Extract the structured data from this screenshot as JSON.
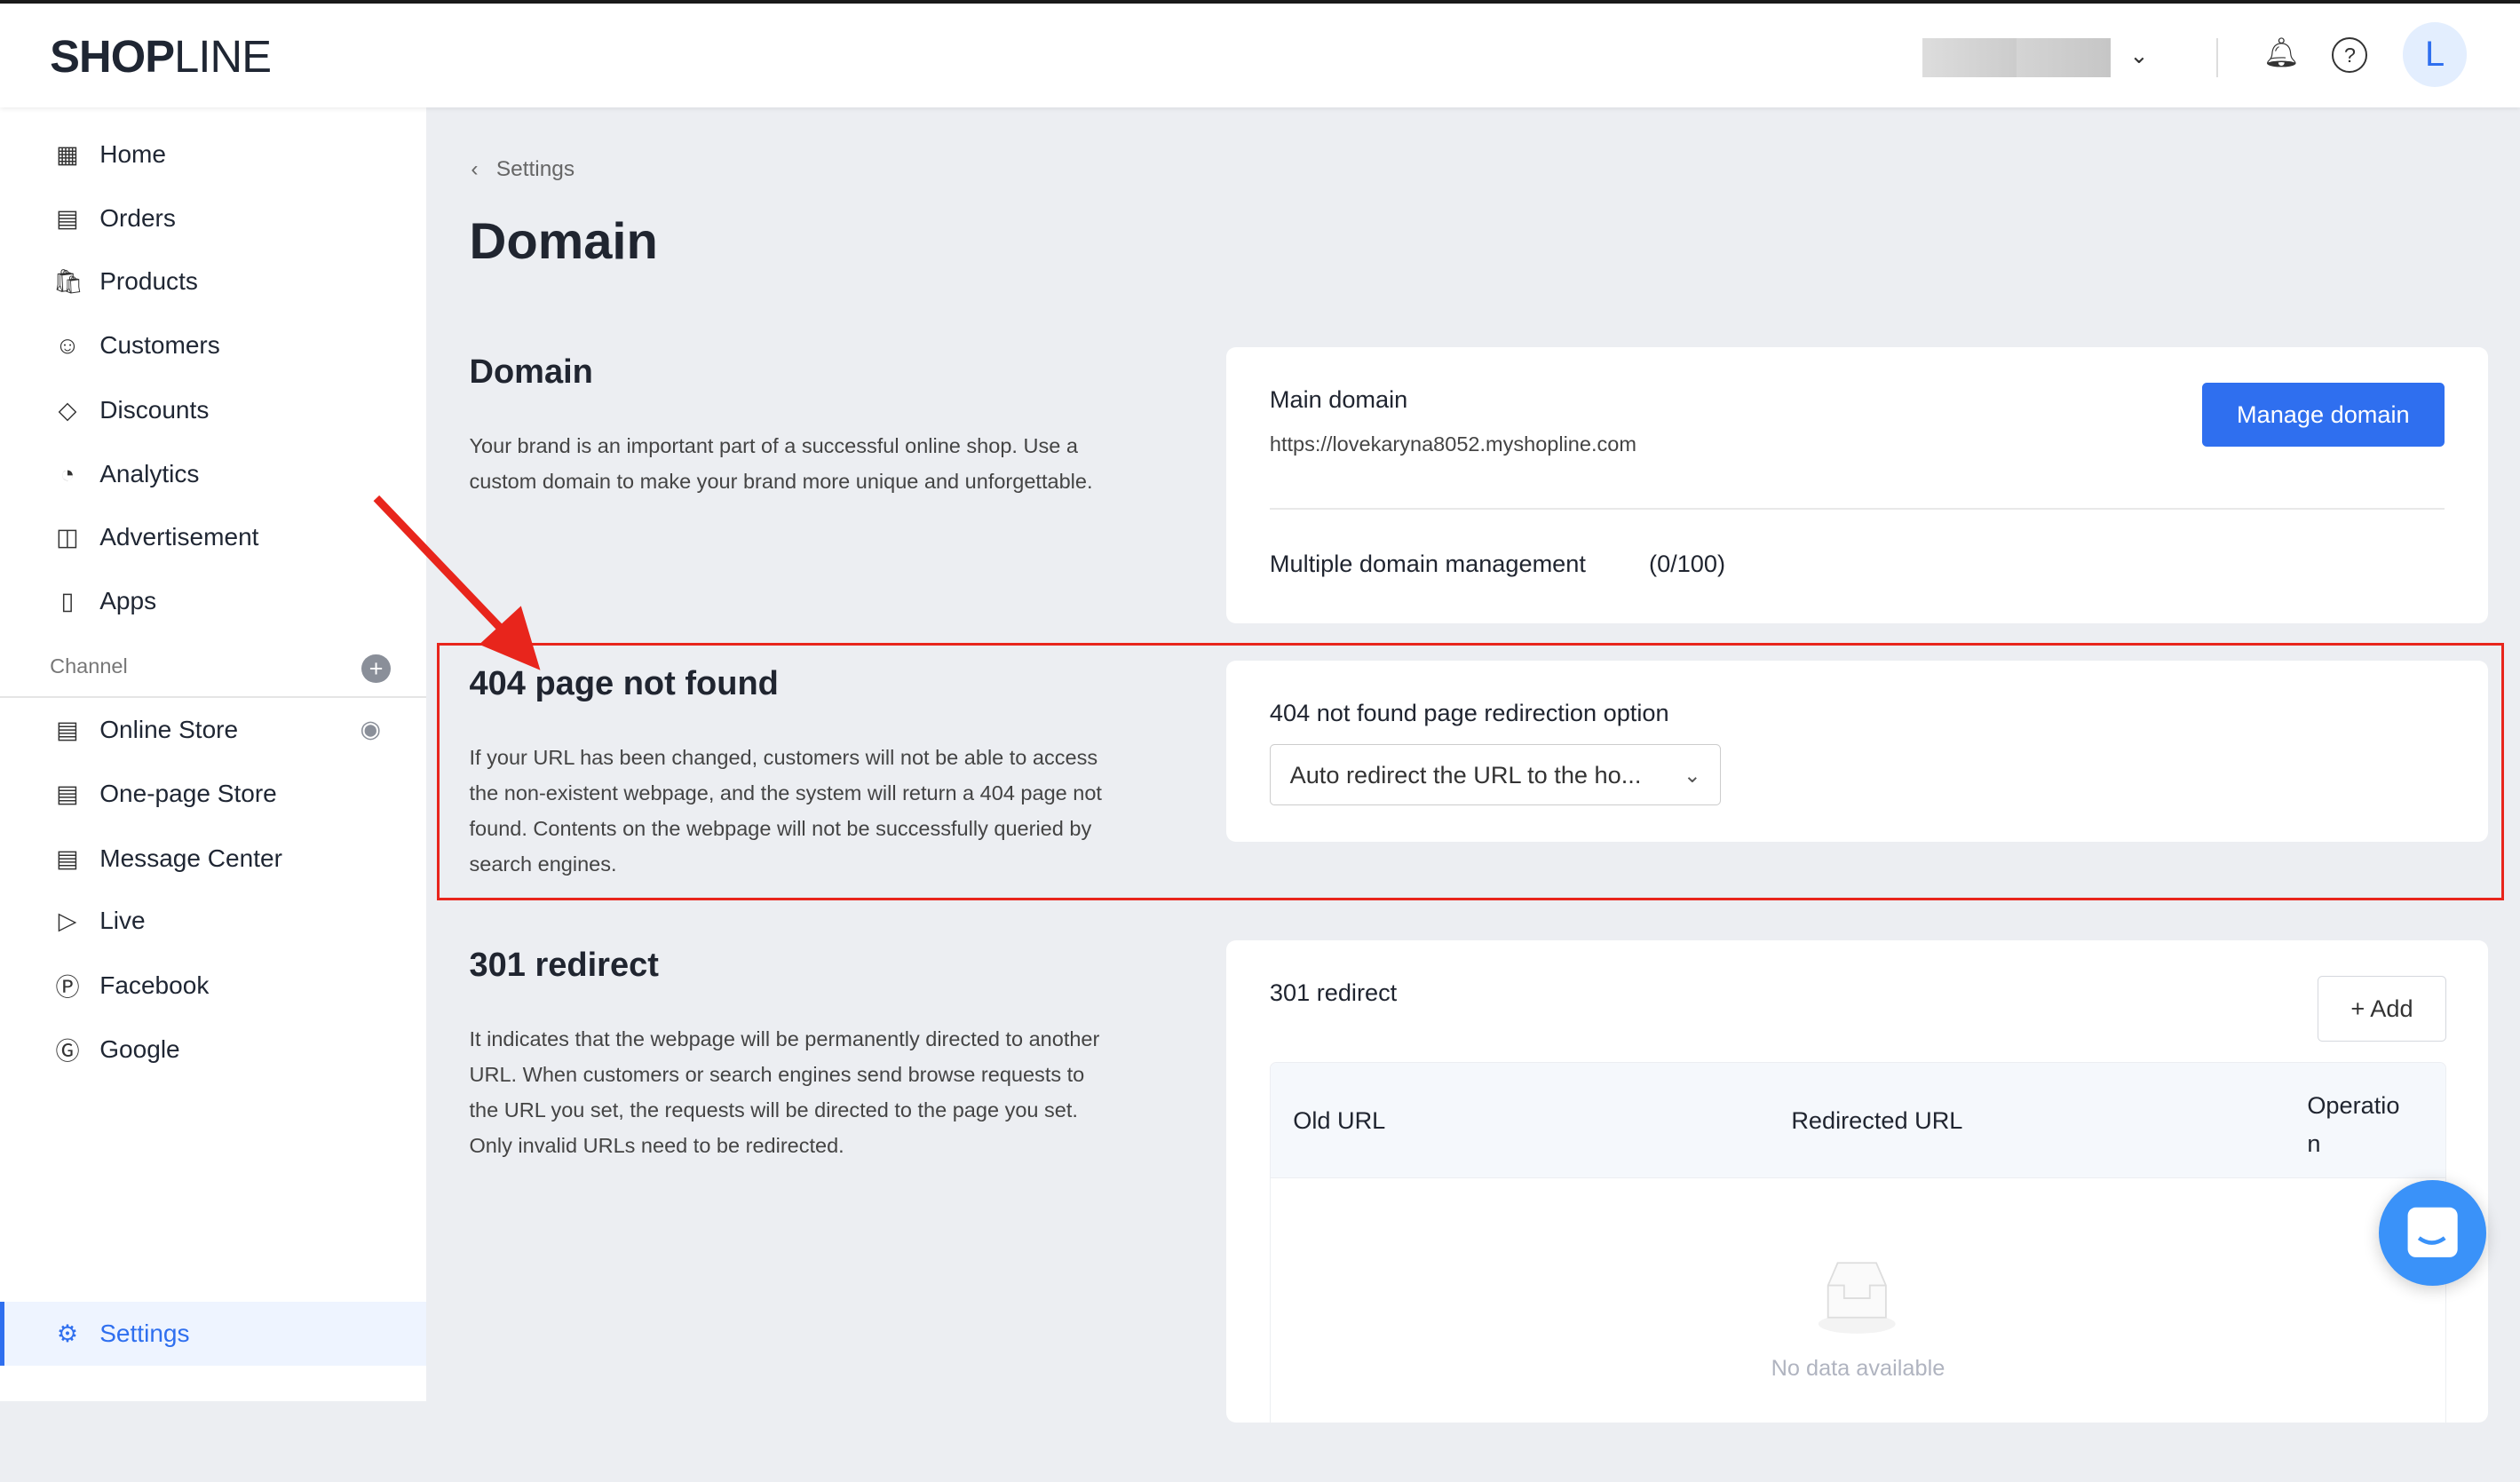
{
  "header": {
    "logo_bold": "SHOP",
    "logo_thin": "LINE",
    "avatar_letter": "L",
    "icons": [
      "chevron-down-icon",
      "bell-icon",
      "help-icon"
    ]
  },
  "sidebar": {
    "items": [
      {
        "label": "Home",
        "icon": "home-icon"
      },
      {
        "label": "Orders",
        "icon": "orders-icon"
      },
      {
        "label": "Products",
        "icon": "bag-icon"
      },
      {
        "label": "Customers",
        "icon": "user-icon"
      },
      {
        "label": "Discounts",
        "icon": "tag-icon"
      },
      {
        "label": "Analytics",
        "icon": "pie-icon"
      },
      {
        "label": "Advertisement",
        "icon": "ad-icon"
      },
      {
        "label": "Apps",
        "icon": "apps-icon"
      }
    ],
    "channel_label": "Channel",
    "channels": [
      {
        "label": "Online Store"
      },
      {
        "label": "One-page Store"
      },
      {
        "label": "Message Center"
      },
      {
        "label": "Live"
      },
      {
        "label": "Facebook"
      },
      {
        "label": "Google"
      }
    ],
    "settings": "Settings"
  },
  "breadcrumb": "Settings",
  "page_title": "Domain",
  "domain": {
    "title": "Domain",
    "desc": "Your brand is an important part of a successful online shop. Use a custom domain to make your brand more unique and unforgettable.",
    "main_label": "Main domain",
    "main_url": "https://lovekaryna8052.myshopline.com",
    "manage_btn": "Manage domain",
    "multi_label": "Multiple domain management",
    "multi_count": "(0/100)"
  },
  "notfound": {
    "title": "404 page not found",
    "desc": "If your URL has been changed, customers will not be able to access the non-existent webpage, and the system will return a 404 page not found. Contents on the webpage will not be successfully queried by search engines.",
    "option_label": "404 not found page redirection option",
    "selected": "Auto redirect the URL to the ho..."
  },
  "redirect": {
    "title": "301 redirect",
    "desc": "It indicates that the webpage will be permanently directed to another URL. When customers or search engines send browse requests to the URL you set, the requests will be directed to the page you set. Only invalid URLs need to be redirected.",
    "card_label": "301 redirect",
    "add_btn": "+ Add",
    "columns": [
      "Old URL",
      "Redirected URL",
      "Operatio n"
    ],
    "empty": "No data available"
  },
  "colors": {
    "accent": "#2f6fef",
    "highlight": "#e8251c",
    "chat": "#3a92f9"
  }
}
